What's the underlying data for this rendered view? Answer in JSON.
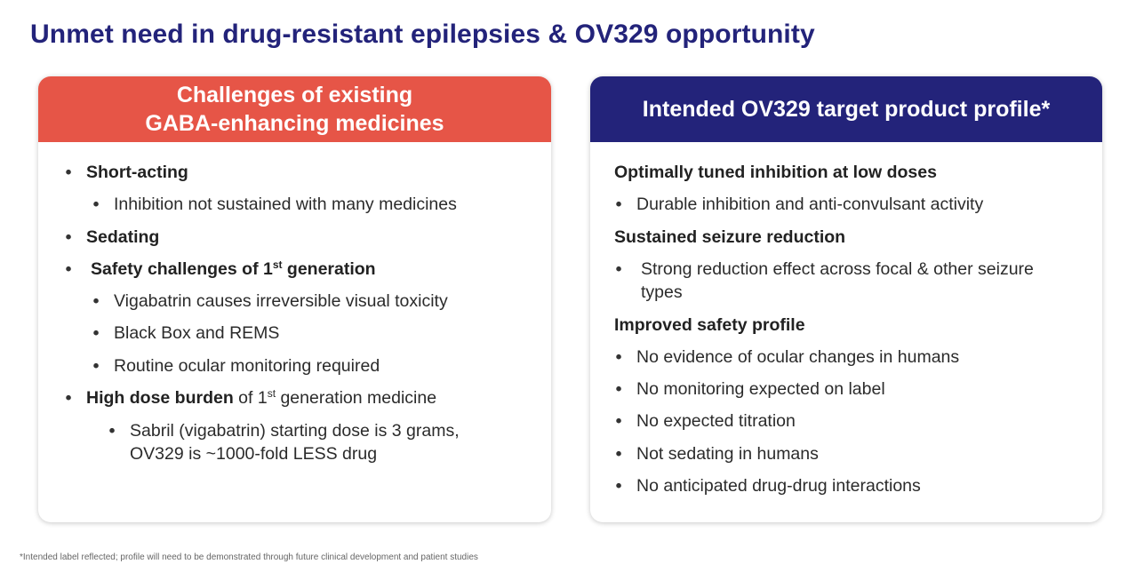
{
  "title": "Unmet need in drug-resistant epilepsies & OV329 opportunity",
  "left_card": {
    "header_line1": "Challenges of existing",
    "header_line2": "GABA-enhancing medicines",
    "short_acting": "Short-acting",
    "short_acting_sub": "Inhibition not sustained with many medicines",
    "sedating": "Sedating",
    "safety_pre": "Safety challenges of 1",
    "safety_sup": "st",
    "safety_post": " generation",
    "safety_sub1": "Vigabatrin causes irreversible visual toxicity",
    "safety_sub2": "Black Box and REMS",
    "safety_sub3": "Routine ocular monitoring required",
    "dose_bold": "High dose burden",
    "dose_pre": " of 1",
    "dose_sup": "st",
    "dose_post": " generation medicine",
    "dose_sub_line1": "Sabril (vigabatrin) starting dose is 3 grams,",
    "dose_sub_line2": "OV329 is ~1000-fold LESS drug"
  },
  "right_card": {
    "header": "Intended OV329 target product profile*",
    "section1_heading": "Optimally tuned inhibition at low doses",
    "section1_item1": "Durable inhibition and anti-convulsant activity",
    "section2_heading": "Sustained seizure reduction",
    "section2_item1_line1": "Strong reduction effect across focal & other seizure",
    "section2_item1_line2": "types",
    "section3_heading": "Improved safety profile",
    "section3_item1": "No evidence of ocular changes in humans",
    "section3_item2": "No monitoring expected on label",
    "section3_item3": "No expected titration",
    "section3_item4": "Not sedating in humans",
    "section3_item5": "No anticipated drug-drug interactions"
  },
  "footnote": "*Intended label reflected; profile will need to be demonstrated through future clinical development and patient studies"
}
